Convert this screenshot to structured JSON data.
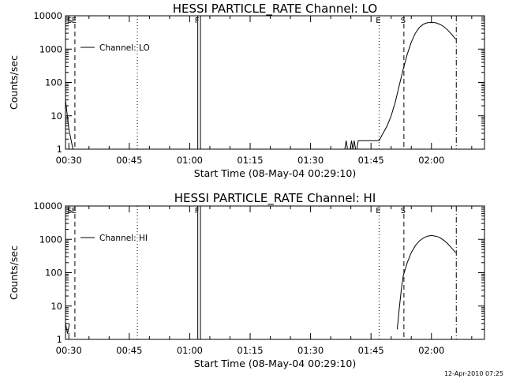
{
  "footer": "12-Apr-2010 07:25",
  "chart_data": [
    {
      "type": "line",
      "title": "HESSI PARTICLE_RATE Channel: LO",
      "xlabel": "Start Time (08-May-04 00:29:10)",
      "ylabel": "Counts/sec",
      "yscale": "log",
      "ylim": [
        1,
        10000
      ],
      "xlim": [
        "00:29:10",
        "02:13:10"
      ],
      "x_ticks": [
        "00:30",
        "00:45",
        "01:00",
        "01:15",
        "01:30",
        "01:45",
        "02:00"
      ],
      "y_ticks": [
        "1",
        "10",
        "100",
        "1000",
        "10000"
      ],
      "legend": {
        "position": "top-left",
        "entries": [
          "Channel: LO"
        ]
      },
      "series": [
        {
          "name": "Channel: LO",
          "x": [
            "00:29:10",
            "00:30:00",
            "00:31:00",
            "01:38:30",
            "01:38:50",
            "01:39:10",
            "01:39:30",
            "01:39:50",
            "01:40:10",
            "01:40:30",
            "01:40:50",
            "01:41:10",
            "01:41:30",
            "01:41:50",
            "01:42:10",
            "01:42:30",
            "01:43:00",
            "01:45:00",
            "01:47:00",
            "01:48:00",
            "01:49:00",
            "01:50:00",
            "01:51:00",
            "01:52:00",
            "01:53:00",
            "01:54:00",
            "01:55:00",
            "01:56:00",
            "01:57:00",
            "01:58:00",
            "01:59:00",
            "02:00:00",
            "02:01:00",
            "02:02:00",
            "02:03:00",
            "02:04:00",
            "02:05:00",
            "02:06:00"
          ],
          "y": [
            30,
            4,
            1,
            1,
            1.8,
            1,
            1,
            1,
            1.8,
            1,
            1.8,
            1,
            1,
            1.8,
            1.8,
            1.8,
            1.8,
            1.8,
            1.8,
            3,
            5,
            10,
            25,
            80,
            250,
            700,
            1600,
            3000,
            4500,
            5600,
            6200,
            6300,
            6200,
            5600,
            4800,
            3800,
            2800,
            2000
          ]
        }
      ],
      "markers": [
        {
          "label": "S",
          "time": "00:29:10",
          "style": "dashed"
        },
        {
          "label": "E",
          "time": "00:31:30",
          "style": "dashed"
        },
        {
          "label": "",
          "time": "00:47:00",
          "style": "dotted"
        },
        {
          "label": "F",
          "time": "01:02:00",
          "style": "solid"
        },
        {
          "label": "",
          "time": "01:02:40",
          "style": "solid"
        },
        {
          "label": "E",
          "time": "01:47:00",
          "style": "dotted"
        },
        {
          "label": "S",
          "time": "01:53:10",
          "style": "dashed"
        },
        {
          "label": "",
          "time": "02:06:10",
          "style": "dash-dot"
        }
      ]
    },
    {
      "type": "line",
      "title": "HESSI PARTICLE_RATE Channel: HI",
      "xlabel": "Start Time (08-May-04 00:29:10)",
      "ylabel": "Counts/sec",
      "yscale": "log",
      "ylim": [
        1,
        10000
      ],
      "xlim": [
        "00:29:10",
        "02:13:10"
      ],
      "x_ticks": [
        "00:30",
        "00:45",
        "01:00",
        "01:15",
        "01:30",
        "01:45",
        "02:00"
      ],
      "y_ticks": [
        "1",
        "10",
        "100",
        "1000",
        "10000"
      ],
      "legend": {
        "position": "top-left",
        "entries": [
          "Channel: HI"
        ]
      },
      "series": [
        {
          "name": "Channel: HI",
          "x": [
            "00:29:10",
            "00:29:40",
            "00:30:10",
            "01:51:30",
            "01:52:00",
            "01:52:30",
            "01:53:00",
            "01:54:00",
            "01:55:00",
            "01:56:00",
            "01:57:00",
            "01:58:00",
            "01:59:00",
            "02:00:00",
            "02:01:00",
            "02:02:00",
            "02:03:00",
            "02:04:00",
            "02:05:00",
            "02:06:00"
          ],
          "y": [
            3,
            1.5,
            3,
            2,
            8,
            30,
            80,
            200,
            400,
            650,
            900,
            1100,
            1250,
            1300,
            1250,
            1150,
            950,
            750,
            550,
            400
          ]
        }
      ],
      "markers": [
        {
          "label": "S",
          "time": "00:29:10",
          "style": "dashed"
        },
        {
          "label": "E",
          "time": "00:31:30",
          "style": "dashed"
        },
        {
          "label": "",
          "time": "00:47:00",
          "style": "dotted"
        },
        {
          "label": "F",
          "time": "01:02:00",
          "style": "solid"
        },
        {
          "label": "",
          "time": "01:02:40",
          "style": "solid"
        },
        {
          "label": "E",
          "time": "01:47:00",
          "style": "dotted"
        },
        {
          "label": "S",
          "time": "01:53:10",
          "style": "dashed"
        },
        {
          "label": "",
          "time": "02:06:10",
          "style": "dash-dot"
        }
      ]
    }
  ]
}
